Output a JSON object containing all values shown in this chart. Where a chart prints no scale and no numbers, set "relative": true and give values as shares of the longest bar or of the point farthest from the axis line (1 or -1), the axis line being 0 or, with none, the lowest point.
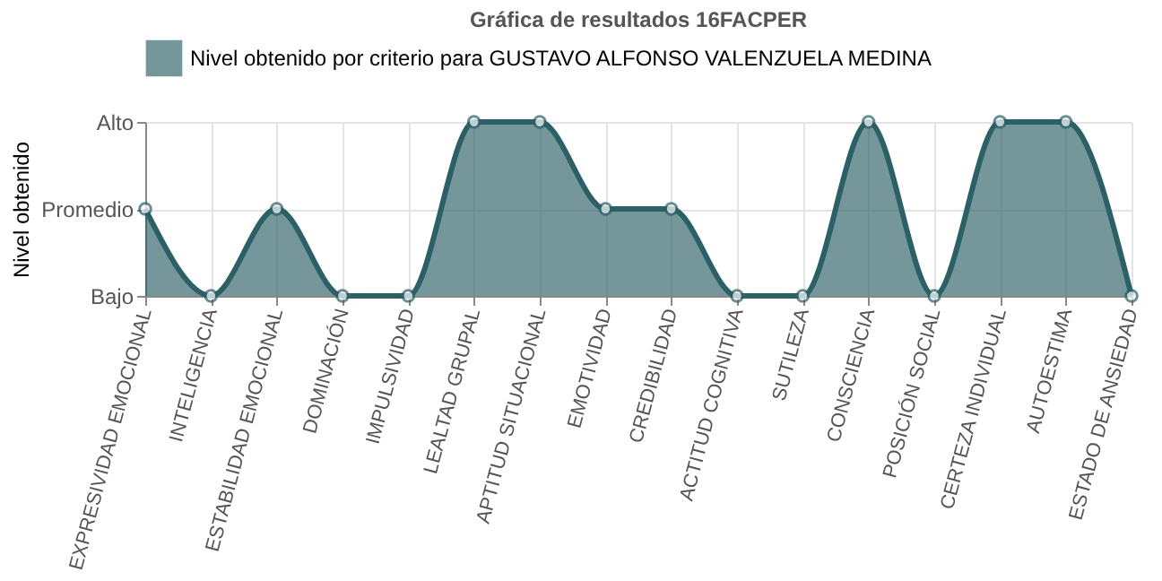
{
  "chart_data": {
    "type": "area",
    "title": "Gráfica de resultados 16FACPER",
    "ylabel": "Nivel obtenido",
    "relative": true,
    "categories": [
      "EXPRESIVIDAD EMOCIONAL",
      "INTELIGENCIA",
      "ESTABILIDAD EMOCIONAL",
      "DOMINACIÓN",
      "IMPULSIVIDAD",
      "LEALTAD GRUPAL",
      "APTITUD SITUACIONAL",
      "EMOTIVIDAD",
      "CREDIBILIDAD",
      "ACTITUD COGNITIVA",
      "SUTILEZA",
      "CONSCIENCIA",
      "POSICIÓN SOCIAL",
      "CERTEZA INDIVIDUAL",
      "AUTOESTIMA",
      "ESTADO DE ANSIEDAD"
    ],
    "series": [
      {
        "name": "Nivel obtenido por criterio para GUSTAVO ALFONSO VALENZUELA MEDINA",
        "color": "#2b6066",
        "values": [
          0.5,
          0,
          0.5,
          0,
          0,
          1,
          1,
          0.5,
          0.5,
          0,
          0,
          1,
          0,
          1,
          1,
          0
        ]
      }
    ],
    "annotations": [
      "Bajo",
      "Promedio",
      "Alto"
    ],
    "grid": true,
    "legend": "top",
    "marker": "circle",
    "line_style": "solid"
  }
}
